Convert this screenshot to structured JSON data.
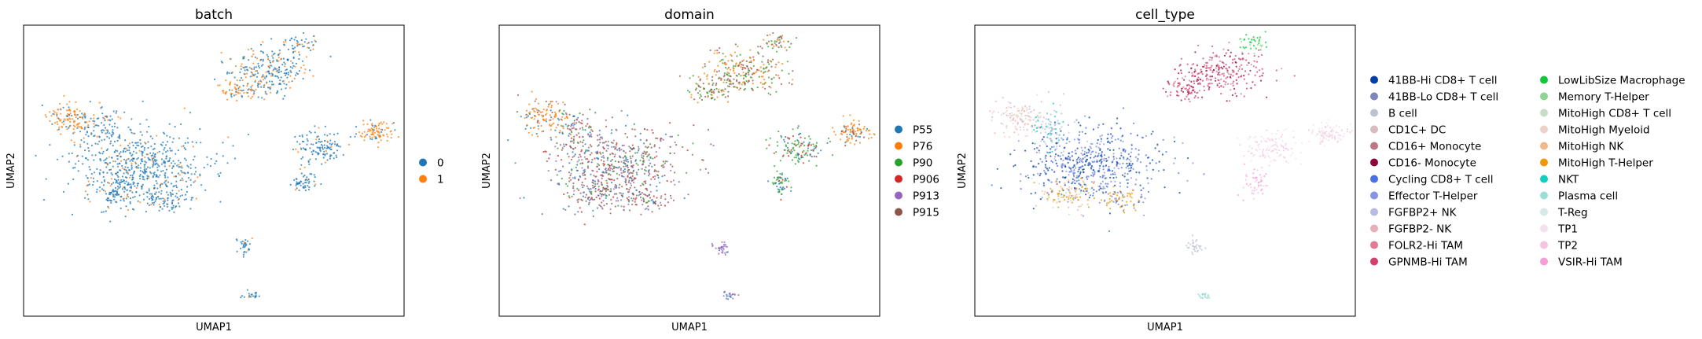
{
  "chart_data": [
    {
      "type": "scatter",
      "title": "batch",
      "xlabel": "UMAP1",
      "ylabel": "UMAP2",
      "grid": false,
      "legend_placement": "right",
      "series": [
        {
          "name": "0",
          "color": "#1f77b4"
        },
        {
          "name": "1",
          "color": "#ff7f0e"
        }
      ]
    },
    {
      "type": "scatter",
      "title": "domain",
      "xlabel": "UMAP1",
      "ylabel": "UMAP2",
      "grid": false,
      "legend_placement": "right",
      "series": [
        {
          "name": "P55",
          "color": "#1f77b4"
        },
        {
          "name": "P76",
          "color": "#ff7f0e"
        },
        {
          "name": "P90",
          "color": "#2ca02c"
        },
        {
          "name": "P906",
          "color": "#d62728"
        },
        {
          "name": "P913",
          "color": "#9467bd"
        },
        {
          "name": "P915",
          "color": "#8c564b"
        }
      ]
    },
    {
      "type": "scatter",
      "title": "cell_type",
      "xlabel": "UMAP1",
      "ylabel": "UMAP2",
      "grid": false,
      "legend_placement": "right",
      "series": [
        {
          "name": "41BB-Hi CD8+ T cell",
          "color": "#023fa5"
        },
        {
          "name": "41BB-Lo CD8+ T cell",
          "color": "#7d87b9"
        },
        {
          "name": "B cell",
          "color": "#bec1d4"
        },
        {
          "name": "CD1C+ DC",
          "color": "#d6bcc0"
        },
        {
          "name": "CD16+ Monocyte",
          "color": "#bb7784"
        },
        {
          "name": "CD16- Monocyte",
          "color": "#8e063b"
        },
        {
          "name": "Cycling CD8+ T cell",
          "color": "#4a6fe3"
        },
        {
          "name": "Effector T-Helper",
          "color": "#8595e1"
        },
        {
          "name": "FGFBP2+ NK",
          "color": "#b5bbe3"
        },
        {
          "name": "FGFBP2- NK",
          "color": "#e6afb9"
        },
        {
          "name": "FOLR2-Hi TAM",
          "color": "#e07b91"
        },
        {
          "name": "GPNMB-Hi TAM",
          "color": "#d33f6a"
        },
        {
          "name": "LowLibSize Macrophage",
          "color": "#11c638"
        },
        {
          "name": "Memory T-Helper",
          "color": "#8dd593"
        },
        {
          "name": "MitoHigh CD8+ T cell",
          "color": "#c6dec7"
        },
        {
          "name": "MitoHigh Myeloid",
          "color": "#ead3c6"
        },
        {
          "name": "MitoHigh NK",
          "color": "#f0b98d"
        },
        {
          "name": "MitoHigh T-Helper",
          "color": "#ef9708"
        },
        {
          "name": "NKT",
          "color": "#0fcfc0"
        },
        {
          "name": "Plasma cell",
          "color": "#9cded6"
        },
        {
          "name": "T-Reg",
          "color": "#d5eae7"
        },
        {
          "name": "TP1",
          "color": "#f3e1eb"
        },
        {
          "name": "TP2",
          "color": "#f6c4e1"
        },
        {
          "name": "VSIR-Hi TAM",
          "color": "#f79cd4"
        }
      ]
    }
  ]
}
